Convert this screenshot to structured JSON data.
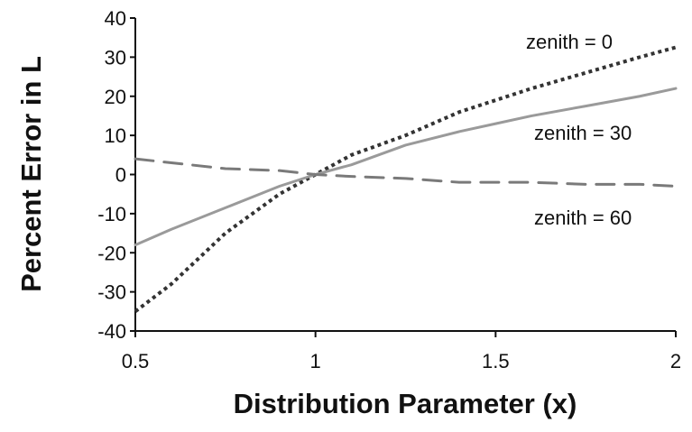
{
  "chart_data": {
    "type": "line",
    "title": "",
    "xlabel": "Distribution Parameter (x)",
    "ylabel": "Percent Error in L",
    "xlim": [
      0.5,
      2
    ],
    "ylim": [
      -40,
      40
    ],
    "x_ticks": [
      0.5,
      1,
      1.5,
      2
    ],
    "y_ticks": [
      -40,
      -30,
      -20,
      -10,
      0,
      10,
      20,
      30,
      40
    ],
    "x_tick_labels": [
      "0.5",
      "1",
      "1.5",
      "2"
    ],
    "y_tick_labels": [
      "-40",
      "-30",
      "-20",
      "-10",
      "0",
      "10",
      "20",
      "30",
      "40"
    ],
    "grid": false,
    "legend": "none",
    "series": [
      {
        "label": "zenith = 0",
        "color": "#333333",
        "style": "dotted",
        "points": [
          [
            0.5,
            -35
          ],
          [
            0.6,
            -28
          ],
          [
            0.75,
            -15
          ],
          [
            0.9,
            -5
          ],
          [
            1.0,
            0
          ],
          [
            1.1,
            5
          ],
          [
            1.25,
            10
          ],
          [
            1.4,
            16
          ],
          [
            1.5,
            19
          ],
          [
            1.6,
            22
          ],
          [
            1.75,
            26
          ],
          [
            1.9,
            30
          ],
          [
            2.0,
            32.5
          ]
        ]
      },
      {
        "label": "zenith = 30",
        "color": "#9a9a9a",
        "style": "solid",
        "points": [
          [
            0.5,
            -18
          ],
          [
            0.6,
            -14
          ],
          [
            0.75,
            -8.5
          ],
          [
            0.9,
            -3
          ],
          [
            1.0,
            0
          ],
          [
            1.1,
            2.5
          ],
          [
            1.25,
            7.5
          ],
          [
            1.4,
            11
          ],
          [
            1.5,
            13
          ],
          [
            1.6,
            15
          ],
          [
            1.75,
            17.5
          ],
          [
            1.9,
            20
          ],
          [
            2.0,
            22
          ]
        ]
      },
      {
        "label": "zenith = 60",
        "color": "#7a7a7a",
        "style": "dashed",
        "points": [
          [
            0.5,
            4
          ],
          [
            0.6,
            3
          ],
          [
            0.75,
            1.5
          ],
          [
            0.9,
            1
          ],
          [
            1.0,
            0
          ],
          [
            1.1,
            -0.5
          ],
          [
            1.25,
            -1
          ],
          [
            1.4,
            -2
          ],
          [
            1.5,
            -2
          ],
          [
            1.6,
            -2
          ],
          [
            1.75,
            -2.5
          ],
          [
            1.9,
            -2.5
          ],
          [
            2.0,
            -3
          ]
        ]
      }
    ]
  }
}
